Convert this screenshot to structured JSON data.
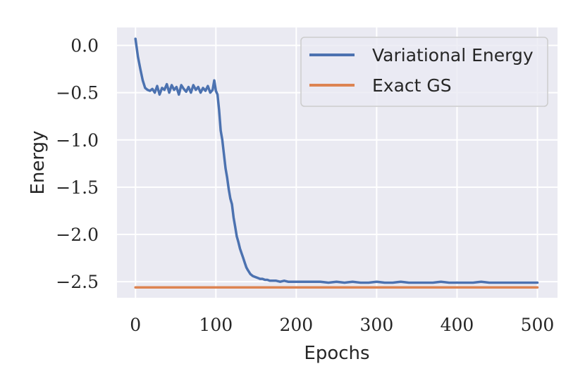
{
  "chart_data": {
    "type": "line",
    "title": "",
    "xlabel": "Epochs",
    "ylabel": "Energy",
    "xlim": [
      -23,
      525
    ],
    "ylim": [
      -2.67,
      0.19
    ],
    "x_ticks": [
      0,
      100,
      200,
      300,
      400,
      500
    ],
    "x_tick_labels": [
      "0",
      "100",
      "200",
      "300",
      "400",
      "500"
    ],
    "y_ticks": [
      0.0,
      -0.5,
      -1.0,
      -1.5,
      -2.0,
      -2.5
    ],
    "y_tick_labels": [
      "0.0",
      "−0.5",
      "−1.0",
      "−1.5",
      "−2.0",
      "−2.5"
    ],
    "grid": true,
    "legend_position": "top-right",
    "series": [
      {
        "name": "Variational Energy",
        "color": "#4c72b0",
        "x": [
          0,
          3,
          6,
          9,
          12,
          15,
          18,
          21,
          24,
          27,
          30,
          33,
          36,
          39,
          42,
          45,
          48,
          51,
          54,
          57,
          60,
          63,
          66,
          69,
          72,
          75,
          78,
          81,
          84,
          87,
          90,
          93,
          96,
          98,
          100,
          102,
          104,
          106,
          108,
          110,
          112,
          114,
          116,
          118,
          120,
          122,
          124,
          126,
          128,
          130,
          132,
          134,
          136,
          138,
          140,
          143,
          146,
          149,
          152,
          155,
          158,
          161,
          164,
          167,
          170,
          175,
          180,
          185,
          190,
          195,
          200,
          210,
          220,
          230,
          240,
          250,
          260,
          270,
          280,
          290,
          300,
          310,
          320,
          330,
          340,
          350,
          360,
          370,
          380,
          390,
          400,
          410,
          420,
          430,
          440,
          450,
          460,
          470,
          480,
          490,
          500
        ],
        "values": [
          0.07,
          -0.12,
          -0.25,
          -0.37,
          -0.45,
          -0.47,
          -0.48,
          -0.46,
          -0.5,
          -0.43,
          -0.52,
          -0.45,
          -0.47,
          -0.41,
          -0.5,
          -0.42,
          -0.47,
          -0.44,
          -0.52,
          -0.42,
          -0.46,
          -0.49,
          -0.44,
          -0.5,
          -0.42,
          -0.47,
          -0.44,
          -0.5,
          -0.45,
          -0.48,
          -0.43,
          -0.5,
          -0.47,
          -0.37,
          -0.48,
          -0.52,
          -0.68,
          -0.9,
          -1.0,
          -1.15,
          -1.3,
          -1.4,
          -1.52,
          -1.62,
          -1.68,
          -1.82,
          -1.92,
          -2.02,
          -2.08,
          -2.15,
          -2.2,
          -2.25,
          -2.3,
          -2.35,
          -2.38,
          -2.42,
          -2.44,
          -2.45,
          -2.46,
          -2.47,
          -2.47,
          -2.48,
          -2.48,
          -2.49,
          -2.49,
          -2.49,
          -2.5,
          -2.49,
          -2.5,
          -2.5,
          -2.5,
          -2.5,
          -2.5,
          -2.5,
          -2.51,
          -2.5,
          -2.51,
          -2.5,
          -2.51,
          -2.51,
          -2.5,
          -2.51,
          -2.51,
          -2.5,
          -2.51,
          -2.51,
          -2.51,
          -2.51,
          -2.5,
          -2.51,
          -2.51,
          -2.51,
          -2.51,
          -2.5,
          -2.51,
          -2.51,
          -2.51,
          -2.51,
          -2.51,
          -2.51,
          -2.51
        ]
      },
      {
        "name": "Exact GS",
        "color": "#dd8452",
        "x": [
          0,
          500
        ],
        "values": [
          -2.56,
          -2.56
        ]
      }
    ]
  }
}
